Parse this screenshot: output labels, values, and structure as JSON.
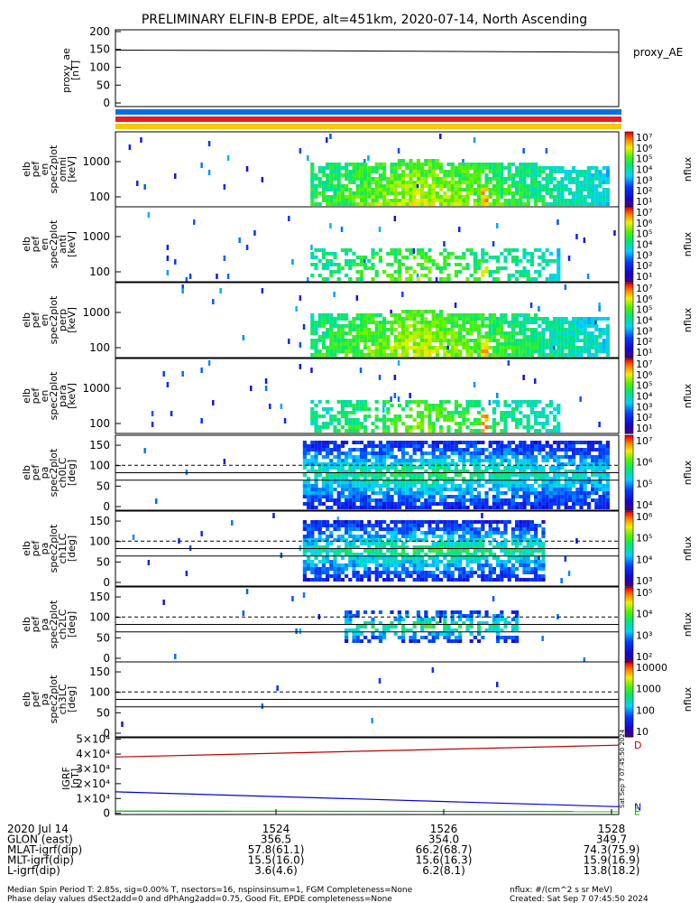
{
  "title": "PRELIMINARY ELFIN-B EPDE, alt=451km, 2020-07-14, North Ascending",
  "chart_data": [
    {
      "type": "line",
      "panel": "proxy_ae",
      "ylabel": [
        "proxy_ae",
        "[nT]"
      ],
      "yticks": [
        "200",
        "150",
        "100",
        "50",
        "0"
      ],
      "ylim": [
        -10,
        205
      ],
      "series": [
        {
          "name": "proxy_AE",
          "x": [
            0,
            0.3,
            0.6,
            1.0
          ],
          "values": [
            148,
            147,
            145,
            142
          ]
        }
      ],
      "bars": [
        "#0070e8",
        "#e81c1c",
        "#f5c800"
      ]
    },
    {
      "type": "heatmap",
      "panel": "energy-omni",
      "ylabel": [
        "elb",
        "pef",
        "en",
        "spec2plot",
        "omni",
        "[keV]"
      ],
      "yticks": [
        "1000",
        "100"
      ],
      "colorbar_label": "nflux",
      "colorbar_ticks": [
        "10⁷",
        "10⁶",
        "10⁵",
        "10⁴",
        "10³",
        "10²",
        "10¹"
      ]
    },
    {
      "type": "heatmap",
      "panel": "energy-anti",
      "ylabel": [
        "elb",
        "pef",
        "en",
        "spec2plot",
        "anti",
        "[keV]"
      ],
      "yticks": [
        "1000",
        "100"
      ],
      "colorbar_label": "nflux",
      "colorbar_ticks": [
        "10⁷",
        "10⁶",
        "10⁵",
        "10⁴",
        "10³",
        "10²",
        "10¹"
      ]
    },
    {
      "type": "heatmap",
      "panel": "energy-perp",
      "ylabel": [
        "elb",
        "pef",
        "en",
        "spec2plot",
        "perp",
        "[keV]"
      ],
      "yticks": [
        "1000",
        "100"
      ],
      "colorbar_label": "nflux",
      "colorbar_ticks": [
        "10⁷",
        "10⁶",
        "10⁵",
        "10⁴",
        "10³",
        "10²",
        "10¹"
      ]
    },
    {
      "type": "heatmap",
      "panel": "energy-para",
      "ylabel": [
        "elb",
        "pef",
        "en",
        "spec2plot",
        "para",
        "[keV]"
      ],
      "yticks": [
        "1000",
        "100"
      ],
      "colorbar_label": "nflux",
      "colorbar_ticks": [
        "10⁷",
        "10⁶",
        "10⁵",
        "10⁴",
        "10³",
        "10²",
        "10¹"
      ]
    },
    {
      "type": "heatmap",
      "panel": "pa-ch0",
      "ylabel": [
        "elb",
        "pef",
        "pa",
        "spec2plot",
        "ch0LC",
        "[deg]"
      ],
      "yticks": [
        "150",
        "100",
        "50",
        "0"
      ],
      "colorbar_label": "nflux",
      "colorbar_ticks": [
        "10⁷",
        "10⁶",
        "10⁵",
        "10⁴"
      ]
    },
    {
      "type": "heatmap",
      "panel": "pa-ch1",
      "ylabel": [
        "elb",
        "pef",
        "pa",
        "spec2plot",
        "ch1LC",
        "[deg]"
      ],
      "yticks": [
        "150",
        "100",
        "50",
        "0"
      ],
      "colorbar_label": "nflux",
      "colorbar_ticks": [
        "10⁶",
        "10⁵",
        "10⁴",
        "10³"
      ]
    },
    {
      "type": "heatmap",
      "panel": "pa-ch2",
      "ylabel": [
        "elb",
        "pef",
        "pa",
        "spec2plot",
        "ch2LC",
        "[deg]"
      ],
      "yticks": [
        "150",
        "100",
        "50",
        "0"
      ],
      "colorbar_label": "nflux",
      "colorbar_ticks": [
        "10⁵",
        "10⁴",
        "10³",
        "10²"
      ]
    },
    {
      "type": "heatmap",
      "panel": "pa-ch3",
      "ylabel": [
        "elb",
        "pef",
        "pa",
        "spec2plot",
        "ch3LC",
        "[deg]"
      ],
      "yticks": [
        "150",
        "100",
        "50",
        "0"
      ],
      "colorbar_label": "nflux",
      "colorbar_ticks": [
        "10000",
        "1000",
        "100",
        "10"
      ]
    },
    {
      "type": "line",
      "panel": "igrf",
      "ylabel": [
        "IGRF",
        "[nT]"
      ],
      "yticks": [
        "5×10⁴",
        "4×10⁴",
        "3×10⁴",
        "2×10⁴",
        "1×10⁴",
        "0"
      ],
      "ylim": [
        -800,
        51000
      ],
      "series": [
        {
          "name": "D",
          "color": "#c00000",
          "x": [
            0,
            1
          ],
          "values": [
            38000,
            46000
          ]
        },
        {
          "name": "N",
          "color": "#0000e0",
          "x": [
            0,
            1
          ],
          "values": [
            14500,
            4500
          ]
        },
        {
          "name": "E",
          "color": "#00b000",
          "x": [
            0,
            1
          ],
          "values": [
            1500,
            1200
          ]
        }
      ]
    }
  ],
  "timestamp_vertical": "Sat Sep 7 07:45:50 2024",
  "footer": {
    "rows": [
      {
        "label": "2020 Jul 14",
        "values": [
          "1524",
          "1526",
          "1528"
        ]
      },
      {
        "label": "GLON (east)",
        "values": [
          "356.5",
          "354.0",
          "349.7"
        ]
      },
      {
        "label": "MLAT-igrf(dip)",
        "values": [
          "57.8(61.1)",
          "66.2(68.7)",
          "74.3(75.9)"
        ]
      },
      {
        "label": "MLT-igrf(dip)",
        "values": [
          "15.5(16.0)",
          "15.6(16.3)",
          "15.9(16.9)"
        ]
      },
      {
        "label": "L-igrf(dip)",
        "values": [
          "3.6(4.6)",
          "6.2(8.1)",
          "13.8(18.2)"
        ]
      }
    ],
    "note1": "Median Spin Period T: 2.85s, sig=0.00% T, nsectors=16, nspinsinsum=1, FGM Completeness=None",
    "note2": "Phase delay values dSect2add=0 and dPhAng2add=0.75, Good Fit, EPDE completeness=None",
    "units": "nflux: #/(cm^2 s sr MeV)",
    "created": "Created: Sat Sep  7 07:45:50 2024"
  }
}
